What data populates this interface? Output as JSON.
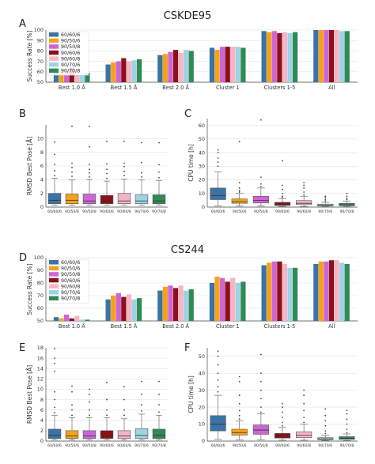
{
  "colors": [
    "#3b73a4",
    "#f5a21b",
    "#cc66d6",
    "#8b1118",
    "#f7b4c6",
    "#9fd3e3",
    "#2f8a58"
  ],
  "panel_labels": [
    "A",
    "B",
    "C",
    "D",
    "E",
    "F"
  ],
  "section_titles": [
    "CSKDE95",
    "CS244"
  ],
  "chart_data": [
    {
      "panel": "A",
      "type": "bar",
      "title": "CSKDE95",
      "ylabel": "Success Rate [%]",
      "ylim": [
        50,
        100
      ],
      "yticks": [
        50,
        60,
        70,
        80,
        90,
        100
      ],
      "grid": true,
      "legend": "top-left",
      "categories": [
        "Best 1.0 Å",
        "Best 1.5 Å",
        "Best 2.0 Å",
        "Cluster 1",
        "Clusters 1-5",
        "All"
      ],
      "series": [
        {
          "name": "60/60/6",
          "values": [
            60,
            67,
            76,
            83,
            99,
            100
          ]
        },
        {
          "name": "90/50/6",
          "values": [
            61,
            69,
            77,
            81,
            98,
            100
          ]
        },
        {
          "name": "90/50/8",
          "values": [
            62,
            70,
            79,
            84,
            99,
            100
          ]
        },
        {
          "name": "90/60/6",
          "values": [
            64,
            73,
            81,
            84,
            97,
            100
          ]
        },
        {
          "name": "90/60/8",
          "values": [
            60,
            70,
            78,
            84,
            98,
            100
          ]
        },
        {
          "name": "90/70/6",
          "values": [
            59,
            71,
            81,
            84,
            97,
            99
          ]
        },
        {
          "name": "90/70/8",
          "values": [
            59,
            72,
            80,
            83,
            98,
            99
          ]
        }
      ]
    },
    {
      "panel": "B",
      "type": "box",
      "ylabel": "RMSD Best Pose [Å]",
      "ylim": [
        0,
        12
      ],
      "yticks": [
        0,
        2,
        4,
        6,
        8,
        10
      ],
      "categories": [
        "60/60/6",
        "90/50/6",
        "90/50/8",
        "90/60/6",
        "90/60/8",
        "90/70/6",
        "90/70/8"
      ],
      "boxes": [
        {
          "min": 0.3,
          "q1": 0.5,
          "median": 1.0,
          "q3": 2.0,
          "max": 4.2,
          "outliers": [
            4.6,
            5.3,
            6.2,
            7.7,
            9.5
          ]
        },
        {
          "min": 0.3,
          "q1": 0.5,
          "median": 1.0,
          "q3": 1.9,
          "max": 4.0,
          "outliers": [
            4.5,
            5.1,
            5.8,
            6.4,
            11.8
          ]
        },
        {
          "min": 0.3,
          "q1": 0.5,
          "median": 0.9,
          "q3": 1.9,
          "max": 4.0,
          "outliers": [
            4.4,
            5.0,
            5.5,
            6.2,
            8.8,
            11.8
          ]
        },
        {
          "min": 0.3,
          "q1": 0.5,
          "median": 0.9,
          "q3": 1.7,
          "max": 3.8,
          "outliers": [
            4.2,
            4.9,
            5.5,
            6.3,
            9.6
          ]
        },
        {
          "min": 0.3,
          "q1": 0.5,
          "median": 0.9,
          "q3": 2.0,
          "max": 4.1,
          "outliers": [
            4.6,
            5.2,
            5.9,
            6.4,
            9.6
          ]
        },
        {
          "min": 0.3,
          "q1": 0.5,
          "median": 0.9,
          "q3": 1.8,
          "max": 4.0,
          "outliers": [
            4.4,
            5.0,
            6.5,
            9.4
          ]
        },
        {
          "min": 0.3,
          "q1": 0.5,
          "median": 0.9,
          "q3": 1.8,
          "max": 3.9,
          "outliers": [
            4.3,
            5.1,
            6.2,
            9.4
          ]
        }
      ]
    },
    {
      "panel": "C",
      "type": "box",
      "ylabel": "CPU time [h]",
      "ylim": [
        0,
        65
      ],
      "yticks": [
        0,
        10,
        20,
        30,
        40,
        50,
        60
      ],
      "categories": [
        "60/60/6",
        "90/50/6",
        "90/50/8",
        "90/60/6",
        "90/60/8",
        "90/70/6",
        "90/70/8"
      ],
      "boxes": [
        {
          "min": 1.0,
          "q1": 5.5,
          "median": 8.5,
          "q3": 14.0,
          "max": 26.0,
          "outliers": [
            30,
            33,
            36,
            40,
            42
          ]
        },
        {
          "min": 0.8,
          "q1": 2.8,
          "median": 4.0,
          "q3": 6.0,
          "max": 10.0,
          "outliers": [
            11,
            12,
            14,
            18,
            48
          ]
        },
        {
          "min": 0.8,
          "q1": 3.0,
          "median": 5.0,
          "q3": 8.0,
          "max": 14.0,
          "outliers": [
            15,
            17,
            22,
            64
          ]
        },
        {
          "min": 0.5,
          "q1": 1.2,
          "median": 2.0,
          "q3": 3.5,
          "max": 6.0,
          "outliers": [
            7,
            8,
            10,
            13,
            16,
            34
          ]
        },
        {
          "min": 0.5,
          "q1": 1.8,
          "median": 2.8,
          "q3": 4.8,
          "max": 8.0,
          "outliers": [
            9,
            11,
            14,
            16,
            18
          ]
        },
        {
          "min": 0.3,
          "q1": 0.8,
          "median": 1.3,
          "q3": 2.2,
          "max": 3.5,
          "outliers": [
            4.5,
            5.5,
            7,
            8
          ]
        },
        {
          "min": 0.3,
          "q1": 1.0,
          "median": 1.6,
          "q3": 2.8,
          "max": 4.5,
          "outliers": [
            5.5,
            6.5,
            8,
            10
          ]
        }
      ]
    },
    {
      "panel": "D",
      "type": "bar",
      "title": "CS244",
      "ylabel": "Success Rate [%]",
      "ylim": [
        50,
        100
      ],
      "yticks": [
        50,
        60,
        70,
        80,
        90,
        100
      ],
      "grid": true,
      "legend": "top-left",
      "categories": [
        "Best 1.0 Å",
        "Best 1.5 Å",
        "Best 2.0 Å",
        "Cluster 1",
        "Clusters 1-5",
        "All"
      ],
      "series": [
        {
          "name": "60/60/6",
          "values": [
            53,
            67,
            74,
            80,
            94,
            95
          ]
        },
        {
          "name": "90/50/6",
          "values": [
            52,
            70,
            77,
            85,
            96,
            97
          ]
        },
        {
          "name": "90/50/8",
          "values": [
            55,
            72,
            78,
            84,
            97,
            97
          ]
        },
        {
          "name": "90/60/6",
          "values": [
            52,
            69,
            76,
            81,
            97,
            98
          ]
        },
        {
          "name": "90/60/8",
          "values": [
            54,
            71,
            78,
            84,
            95,
            98
          ]
        },
        {
          "name": "90/70/6",
          "values": [
            51,
            67,
            74,
            80,
            92,
            96
          ]
        },
        {
          "name": "90/70/8",
          "values": [
            51,
            68,
            75,
            81,
            92,
            95
          ]
        }
      ]
    },
    {
      "panel": "E",
      "type": "box",
      "ylabel": "RMSD Best Pose [Å]",
      "ylim": [
        0,
        18
      ],
      "yticks": [
        0,
        2,
        4,
        6,
        8,
        10,
        12,
        14,
        16,
        18
      ],
      "categories": [
        "60/60/6",
        "90/50/6",
        "90/50/8",
        "90/60/6",
        "90/60/8",
        "90/70/6",
        "90/70/8"
      ],
      "boxes": [
        {
          "min": 0.2,
          "q1": 0.5,
          "median": 1.1,
          "q3": 2.3,
          "max": 5.0,
          "outliers": [
            5.5,
            6.5,
            8,
            9.5,
            13.5,
            15,
            16,
            17.8
          ]
        },
        {
          "min": 0.2,
          "q1": 0.5,
          "median": 1.0,
          "q3": 2.0,
          "max": 4.5,
          "outliers": [
            5,
            6,
            7,
            9.5,
            10.6
          ]
        },
        {
          "min": 0.2,
          "q1": 0.5,
          "median": 1.0,
          "q3": 2.0,
          "max": 4.5,
          "outliers": [
            5,
            6,
            7.5,
            9,
            10
          ]
        },
        {
          "min": 0.2,
          "q1": 0.5,
          "median": 1.0,
          "q3": 2.0,
          "max": 4.5,
          "outliers": [
            5,
            6,
            8,
            11.3
          ]
        },
        {
          "min": 0.2,
          "q1": 0.5,
          "median": 1.0,
          "q3": 2.0,
          "max": 4.3,
          "outliers": [
            5,
            6,
            8,
            10.5
          ]
        },
        {
          "min": 0.2,
          "q1": 0.5,
          "median": 1.1,
          "q3": 2.4,
          "max": 5.2,
          "outliers": [
            5.8,
            7,
            9,
            11.5
          ]
        },
        {
          "min": 0.2,
          "q1": 0.5,
          "median": 1.1,
          "q3": 2.3,
          "max": 5.0,
          "outliers": [
            5.6,
            7,
            9,
            11.5
          ]
        }
      ]
    },
    {
      "panel": "F",
      "type": "box",
      "ylabel": "CPU time [h]",
      "ylim": [
        0,
        55
      ],
      "yticks": [
        0,
        10,
        20,
        30,
        40,
        50
      ],
      "categories": [
        "60/60/6",
        "90/50/6",
        "90/50/8",
        "90/60/6",
        "90/60/8",
        "90/70/6",
        "90/70/8"
      ],
      "boxes": [
        {
          "min": 1.0,
          "q1": 6.0,
          "median": 10.0,
          "q3": 15.0,
          "max": 27.0,
          "outliers": [
            29,
            32,
            36,
            40,
            45,
            50,
            53
          ]
        },
        {
          "min": 0.8,
          "q1": 3.5,
          "median": 5.0,
          "q3": 7.0,
          "max": 12.0,
          "outliers": [
            13,
            15,
            18,
            22,
            27,
            35,
            38
          ]
        },
        {
          "min": 0.8,
          "q1": 4.0,
          "median": 6.5,
          "q3": 9.5,
          "max": 16.0,
          "outliers": [
            17,
            20,
            25,
            30,
            35,
            40,
            51
          ]
        },
        {
          "min": 0.5,
          "q1": 1.8,
          "median": 2.8,
          "q3": 4.5,
          "max": 8.0,
          "outliers": [
            9,
            11,
            14,
            17,
            20,
            22
          ]
        },
        {
          "min": 0.5,
          "q1": 2.0,
          "median": 3.5,
          "q3": 5.5,
          "max": 10.0,
          "outliers": [
            11,
            14,
            18,
            22,
            27,
            30
          ]
        },
        {
          "min": 0.3,
          "q1": 0.8,
          "median": 1.3,
          "q3": 2.0,
          "max": 3.5,
          "outliers": [
            4.5,
            6,
            9,
            12,
            15,
            19
          ]
        },
        {
          "min": 0.3,
          "q1": 1.0,
          "median": 1.7,
          "q3": 2.6,
          "max": 4.2,
          "outliers": [
            5,
            7,
            10,
            13,
            16,
            18
          ]
        }
      ]
    }
  ]
}
